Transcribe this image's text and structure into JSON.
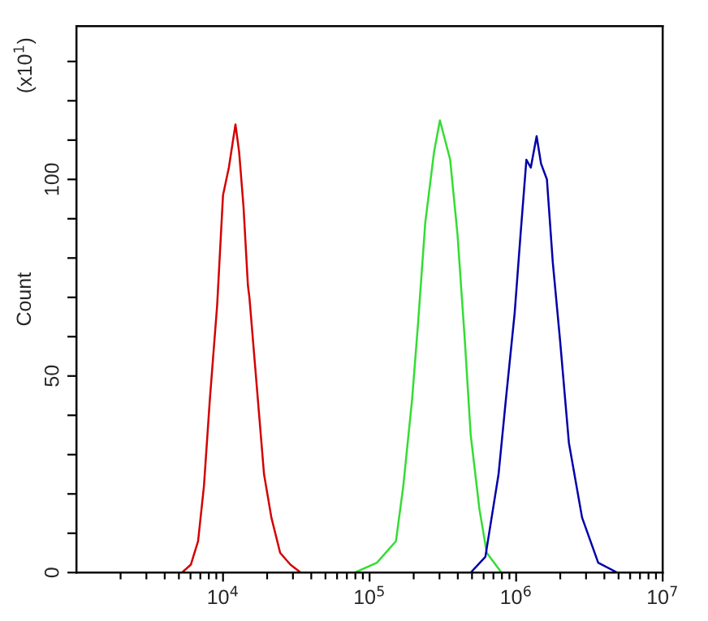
{
  "chart_data": {
    "type": "line",
    "ylabel": "Count",
    "annotations": [
      "(x10$^{1}$)"
    ],
    "log": "x",
    "xlim": [
      1000,
      10000000
    ],
    "xticks": [
      {
        "value": 10000,
        "label": "10$^{4}$"
      },
      {
        "value": 100000,
        "label": "10$^{5}$"
      },
      {
        "value": 1000000,
        "label": "10$^{6}$"
      },
      {
        "value": 10000000,
        "label": "10$^{7}$"
      }
    ],
    "ylim": [
      0,
      139
    ],
    "yticks": [
      0,
      {
        "value": 10,
        "label": null
      },
      {
        "value": 20,
        "label": null
      },
      {
        "value": 30,
        "label": null
      },
      {
        "value": 40,
        "label": null
      },
      50,
      {
        "value": 60,
        "label": null
      },
      {
        "value": 70,
        "label": null
      },
      {
        "value": 80,
        "label": null
      },
      {
        "value": 90,
        "label": null
      },
      100,
      {
        "value": 110,
        "label": null
      },
      {
        "value": 120,
        "label": null
      },
      {
        "value": 130,
        "label": null
      }
    ],
    "grid": false,
    "marker": "none",
    "line_style": "solid",
    "series": [
      {
        "color": "#d40000",
        "x": [
          5250,
          6030,
          6760,
          7410,
          8130,
          9120,
          10000,
          10960,
          12160,
          12880,
          13800,
          14790,
          15140,
          16600,
          19050,
          21380,
          24550,
          28840,
          33880
        ],
        "values": [
          0,
          2,
          8,
          22,
          44,
          68,
          96,
          103,
          114,
          107,
          93,
          73,
          70,
          52,
          25,
          14,
          5,
          2,
          0
        ]
      },
      {
        "color": "#33dd33",
        "x": [
          79400,
          112200,
          151400,
          169800,
          195000,
          213800,
          239900,
          275400,
          302000,
          354800,
          398100,
          446700,
          489800,
          562300,
          631000,
          794300
        ],
        "values": [
          0,
          2.5,
          8,
          22,
          44,
          63,
          89,
          107,
          115,
          105,
          86,
          59,
          35,
          16,
          5,
          0
        ]
      },
      {
        "color": "#0000aa",
        "x": [
          489800,
          616600,
          758600,
          851100,
          977200,
          1072000,
          1175000,
          1259000,
          1380000,
          1479000,
          1622000,
          1778000,
          1995000,
          2291000,
          2818000,
          3631000,
          4898000
        ],
        "values": [
          0,
          4,
          25,
          44,
          66,
          86,
          105,
          103,
          111,
          104,
          100,
          79,
          59,
          33,
          14,
          2.5,
          0
        ]
      }
    ]
  }
}
